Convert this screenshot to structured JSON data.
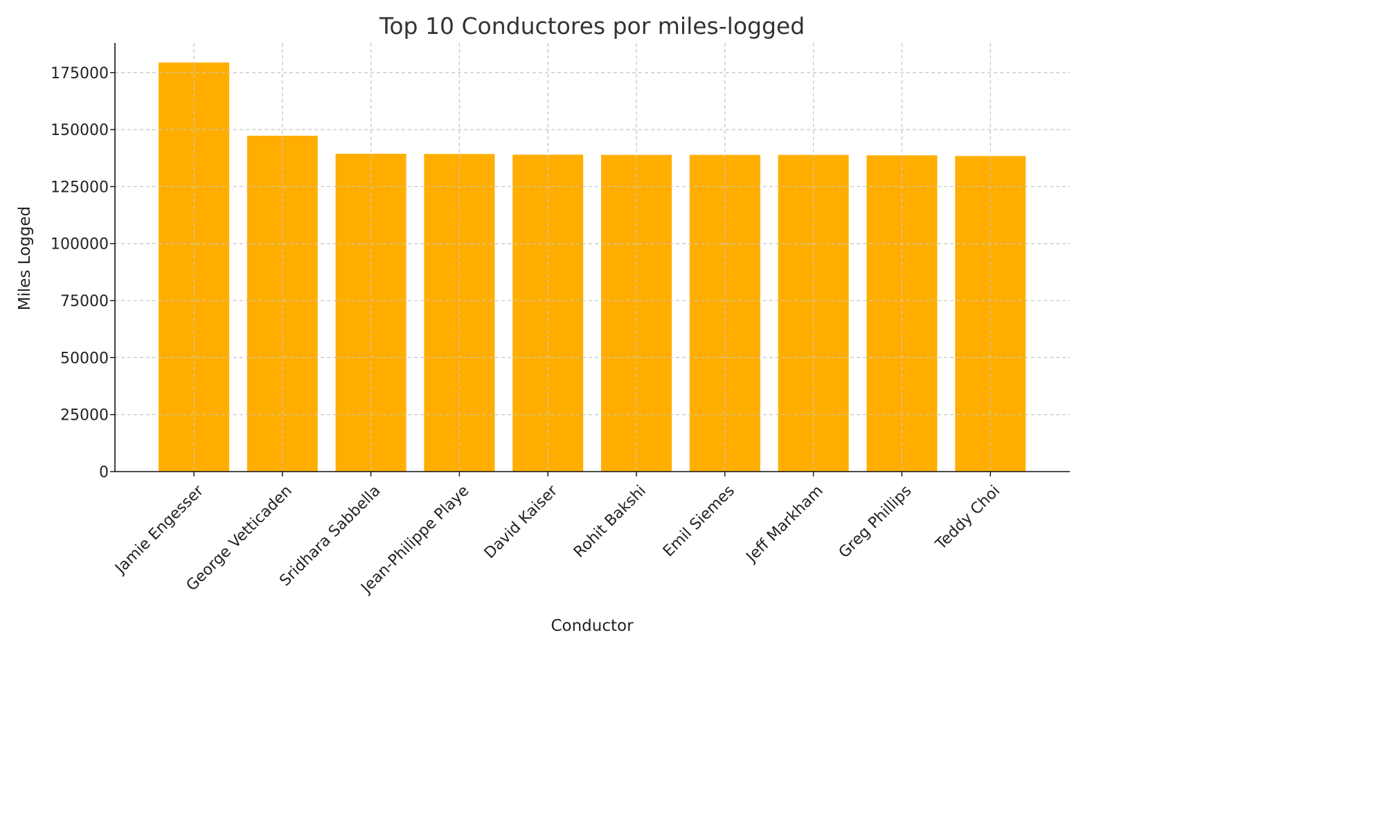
{
  "chart_data": {
    "type": "bar",
    "title": "Top 10 Conductores por miles-logged",
    "xlabel": "Conductor",
    "ylabel": "Miles Logged",
    "categories": [
      "Jamie Engesser",
      "George Vetticaden",
      "Sridhara Sabbella",
      "Jean-Philippe Playe",
      "David Kaiser",
      "Rohit Bakshi",
      "Emil Siemes",
      "Jeff Markham",
      "Greg Phillips",
      "Teddy Choi"
    ],
    "values": [
      179400,
      147300,
      139400,
      139300,
      139000,
      138900,
      138900,
      138900,
      138700,
      138400
    ],
    "ylim": [
      0,
      188000
    ],
    "yticks": [
      0,
      25000,
      50000,
      75000,
      100000,
      125000,
      150000,
      175000
    ],
    "bar_color": "#ffae00",
    "grid": true,
    "legend": "none"
  }
}
